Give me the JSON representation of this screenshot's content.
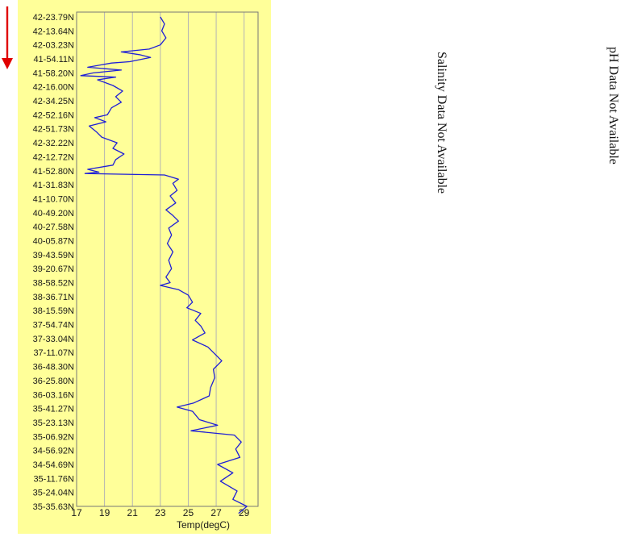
{
  "colors": {
    "panel_bg": "#ffff99",
    "line": "#1f1fd6",
    "arrow": "#e00000",
    "grid": "#b4b4b4"
  },
  "icons": {
    "direction_arrow": "red-down-arrow-icon"
  },
  "notices": {
    "salinity": "Salinity Data Not Available",
    "ph": "pH Data Not Available"
  },
  "chart_data": {
    "type": "line",
    "orientation": "vertical-profile",
    "xlabel": "Temp(degC)",
    "xlim": [
      17,
      30
    ],
    "xticks": [
      17,
      19,
      21,
      23,
      25,
      27,
      29
    ],
    "grid": "vertical",
    "ytick_labels": [
      "42-23.79N",
      "42-13.64N",
      "42-03.23N",
      "41-54.11N",
      "41-58.20N",
      "42-16.00N",
      "42-34.25N",
      "42-52.16N",
      "42-51.73N",
      "42-32.22N",
      "42-12.72N",
      "41-52.80N",
      "41-31.83N",
      "41-10.70N",
      "40-49.20N",
      "40-27.58N",
      "40-05.87N",
      "39-43.59N",
      "39-20.67N",
      "38-58.52N",
      "38-36.71N",
      "38-15.59N",
      "37-54.74N",
      "37-33.04N",
      "37-11.07N",
      "36-48.30N",
      "36-25.80N",
      "36-03.16N",
      "35-41.27N",
      "35-23.13N",
      "35-06.92N",
      "34-56.92N",
      "34-54.69N",
      "35-11.76N",
      "35-24.04N",
      "35-35.63N"
    ],
    "series": [
      {
        "values": [
          [
            23.0,
            0
          ],
          [
            23.3,
            0.5
          ],
          [
            23.1,
            1
          ],
          [
            23.4,
            1.5
          ],
          [
            23.0,
            2
          ],
          [
            22.2,
            2.3
          ],
          [
            20.2,
            2.5
          ],
          [
            21.5,
            2.7
          ],
          [
            22.3,
            2.9
          ],
          [
            20.8,
            3.2
          ],
          [
            19.5,
            3.3
          ],
          [
            17.8,
            3.6
          ],
          [
            20.2,
            3.8
          ],
          [
            18.2,
            4.0
          ],
          [
            17.3,
            4.2
          ],
          [
            19.8,
            4.3
          ],
          [
            18.5,
            4.5
          ],
          [
            19.6,
            4.9
          ],
          [
            20.3,
            5.3
          ],
          [
            19.8,
            5.7
          ],
          [
            20.2,
            6.1
          ],
          [
            19.5,
            6.5
          ],
          [
            19.2,
            7.0
          ],
          [
            18.3,
            7.2
          ],
          [
            19.1,
            7.5
          ],
          [
            17.9,
            7.8
          ],
          [
            18.4,
            8.2
          ],
          [
            18.8,
            8.6
          ],
          [
            19.9,
            9.0
          ],
          [
            19.6,
            9.4
          ],
          [
            20.4,
            9.8
          ],
          [
            19.8,
            10.2
          ],
          [
            19.6,
            10.6
          ],
          [
            17.8,
            10.9
          ],
          [
            18.6,
            11.1
          ],
          [
            17.6,
            11.2
          ],
          [
            23.3,
            11.3
          ],
          [
            24.3,
            11.6
          ],
          [
            23.9,
            11.9
          ],
          [
            24.2,
            12.4
          ],
          [
            23.7,
            12.8
          ],
          [
            24.1,
            13.3
          ],
          [
            23.4,
            13.8
          ],
          [
            23.9,
            14.2
          ],
          [
            24.3,
            14.6
          ],
          [
            23.6,
            15.1
          ],
          [
            23.8,
            15.6
          ],
          [
            23.5,
            16.2
          ],
          [
            23.9,
            16.8
          ],
          [
            23.6,
            17.4
          ],
          [
            23.8,
            18.0
          ],
          [
            23.4,
            18.6
          ],
          [
            23.7,
            19.0
          ],
          [
            23.0,
            19.2
          ],
          [
            24.3,
            19.5
          ],
          [
            25.0,
            19.9
          ],
          [
            25.3,
            20.4
          ],
          [
            24.9,
            20.8
          ],
          [
            25.9,
            21.2
          ],
          [
            25.5,
            21.7
          ],
          [
            25.9,
            22.1
          ],
          [
            26.2,
            22.6
          ],
          [
            25.3,
            23.1
          ],
          [
            26.4,
            23.6
          ],
          [
            26.8,
            24.0
          ],
          [
            27.4,
            24.6
          ],
          [
            26.8,
            25.2
          ],
          [
            26.9,
            25.8
          ],
          [
            26.6,
            26.5
          ],
          [
            26.5,
            27.1
          ],
          [
            25.4,
            27.6
          ],
          [
            24.2,
            27.9
          ],
          [
            25.3,
            28.2
          ],
          [
            25.8,
            28.8
          ],
          [
            27.1,
            29.2
          ],
          [
            25.2,
            29.6
          ],
          [
            28.3,
            29.9
          ],
          [
            28.8,
            30.4
          ],
          [
            28.4,
            30.9
          ],
          [
            28.7,
            31.5
          ],
          [
            27.1,
            32.0
          ],
          [
            28.2,
            32.6
          ],
          [
            27.3,
            33.2
          ],
          [
            28.5,
            33.9
          ],
          [
            28.2,
            34.5
          ],
          [
            29.2,
            35.0
          ],
          [
            28.6,
            35.5
          ]
        ]
      }
    ]
  }
}
